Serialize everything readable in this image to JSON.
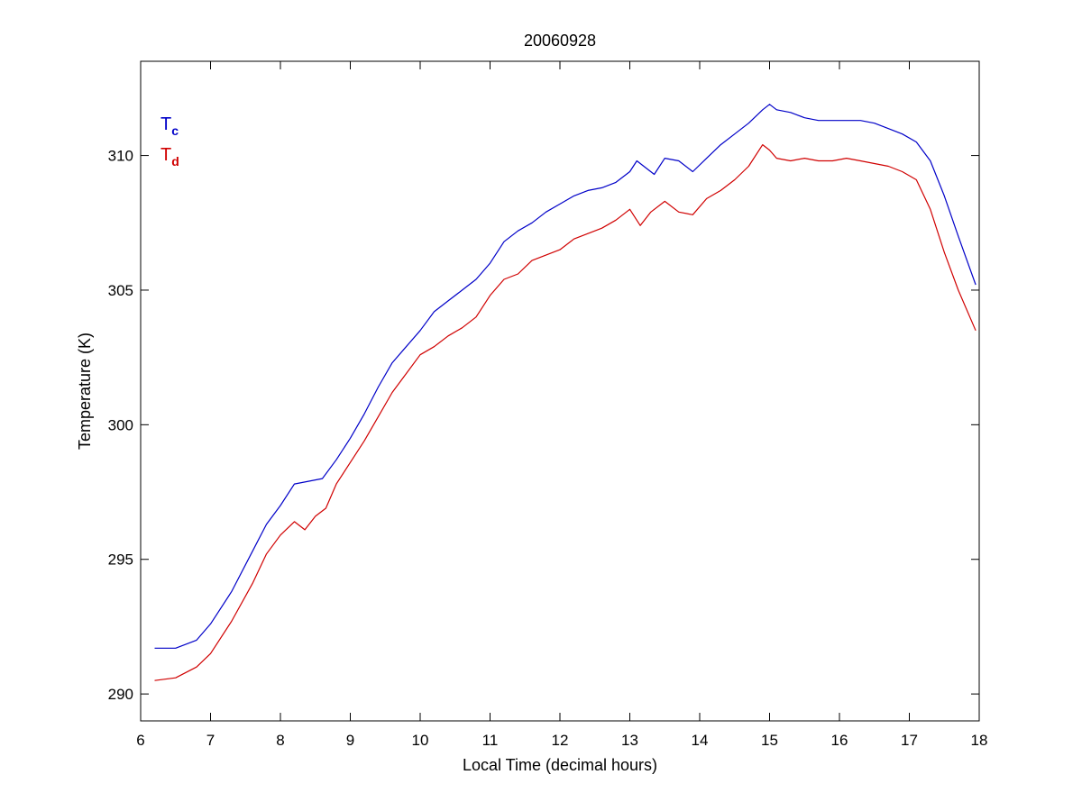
{
  "chart_data": {
    "type": "line",
    "title": "20060928",
    "xlabel": "Local Time (decimal hours)",
    "ylabel": "Temperature (K)",
    "xlim": [
      6,
      18
    ],
    "ylim": [
      289,
      313.5
    ],
    "xticks": [
      6,
      7,
      8,
      9,
      10,
      11,
      12,
      13,
      14,
      15,
      16,
      17,
      18
    ],
    "yticks": [
      290,
      295,
      300,
      305,
      310
    ],
    "grid": false,
    "legend_position": "top-left",
    "series": [
      {
        "name": "T",
        "subscript": "c",
        "color": "#0000c8",
        "x": [
          6.2,
          6.5,
          6.8,
          7.0,
          7.3,
          7.6,
          7.8,
          8.0,
          8.2,
          8.4,
          8.6,
          8.8,
          9.0,
          9.2,
          9.4,
          9.6,
          9.8,
          10.0,
          10.2,
          10.4,
          10.6,
          10.8,
          11.0,
          11.2,
          11.4,
          11.6,
          11.8,
          12.0,
          12.2,
          12.4,
          12.6,
          12.8,
          13.0,
          13.1,
          13.2,
          13.35,
          13.5,
          13.7,
          13.9,
          14.1,
          14.3,
          14.5,
          14.7,
          14.9,
          15.0,
          15.1,
          15.3,
          15.5,
          15.7,
          15.9,
          16.1,
          16.3,
          16.5,
          16.7,
          16.9,
          17.1,
          17.3,
          17.5,
          17.7,
          17.95
        ],
        "y": [
          291.7,
          291.7,
          292.0,
          292.6,
          293.8,
          295.3,
          296.3,
          297.0,
          297.8,
          297.9,
          298.0,
          298.7,
          299.5,
          300.4,
          301.4,
          302.3,
          302.9,
          303.5,
          304.2,
          304.6,
          305.0,
          305.4,
          306.0,
          306.8,
          307.2,
          307.5,
          307.9,
          308.2,
          308.5,
          308.7,
          308.8,
          309.0,
          309.4,
          309.8,
          309.6,
          309.3,
          309.9,
          309.8,
          309.4,
          309.9,
          310.4,
          310.8,
          311.2,
          311.7,
          311.9,
          311.7,
          311.6,
          311.4,
          311.3,
          311.3,
          311.3,
          311.3,
          311.2,
          311.0,
          310.8,
          310.5,
          309.8,
          308.5,
          307.0,
          305.2
        ]
      },
      {
        "name": "T",
        "subscript": "d",
        "color": "#d00000",
        "x": [
          6.2,
          6.5,
          6.8,
          7.0,
          7.3,
          7.6,
          7.8,
          8.0,
          8.2,
          8.35,
          8.5,
          8.65,
          8.8,
          9.0,
          9.2,
          9.4,
          9.6,
          9.8,
          10.0,
          10.2,
          10.4,
          10.6,
          10.8,
          11.0,
          11.2,
          11.4,
          11.6,
          11.8,
          12.0,
          12.2,
          12.4,
          12.6,
          12.8,
          13.0,
          13.15,
          13.3,
          13.5,
          13.7,
          13.9,
          14.1,
          14.3,
          14.5,
          14.7,
          14.9,
          15.0,
          15.1,
          15.3,
          15.5,
          15.7,
          15.9,
          16.1,
          16.3,
          16.5,
          16.7,
          16.9,
          17.1,
          17.3,
          17.5,
          17.7,
          17.95
        ],
        "y": [
          290.5,
          290.6,
          291.0,
          291.5,
          292.7,
          294.1,
          295.2,
          295.9,
          296.4,
          296.1,
          296.6,
          296.9,
          297.8,
          298.6,
          299.4,
          300.3,
          301.2,
          301.9,
          302.6,
          302.9,
          303.3,
          303.6,
          304.0,
          304.8,
          305.4,
          305.6,
          306.1,
          306.3,
          306.5,
          306.9,
          307.1,
          307.3,
          307.6,
          308.0,
          307.4,
          307.9,
          308.3,
          307.9,
          307.8,
          308.4,
          308.7,
          309.1,
          309.6,
          310.4,
          310.2,
          309.9,
          309.8,
          309.9,
          309.8,
          309.8,
          309.9,
          309.8,
          309.7,
          309.6,
          309.4,
          309.1,
          308.0,
          306.4,
          305.0,
          303.5
        ]
      }
    ]
  }
}
